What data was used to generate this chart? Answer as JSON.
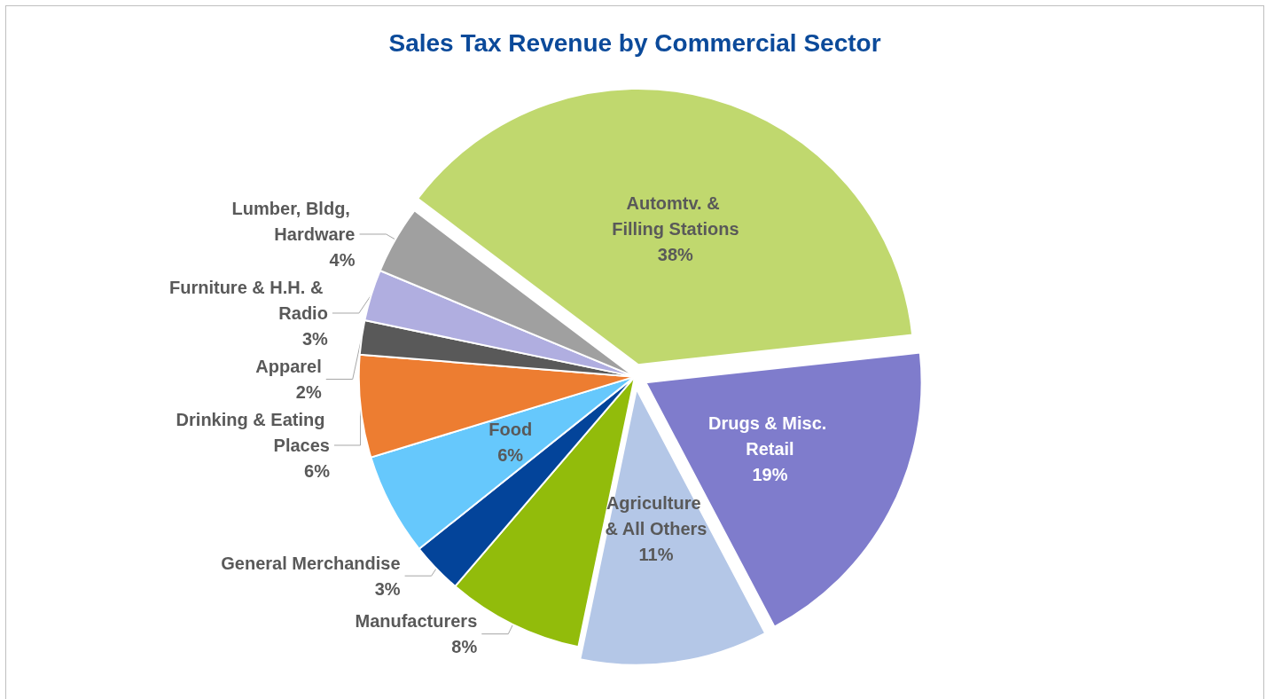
{
  "chart_data": {
    "type": "pie",
    "title": "Sales Tax Revenue by Commercial Sector",
    "categories": [
      "Automtv. & Filling Stations",
      "Drugs & Misc. Retail",
      "Agriculture & All Others",
      "Manufacturers",
      "General Merchandise",
      "Food",
      "Drinking & Eating Places",
      "Apparel",
      "Furniture & H.H. & Radio",
      "Lumber, Bldg, Hardware"
    ],
    "values": [
      38,
      19,
      11,
      8,
      3,
      6,
      6,
      2,
      3,
      4
    ],
    "colors": [
      "#c0d86e",
      "#7f7ccc",
      "#b4c7e7",
      "#92bc0b",
      "#03449a",
      "#66c8fc",
      "#ed7d31",
      "#595959",
      "#b0aee0",
      "#a0a0a0"
    ],
    "value_labels": [
      "38%",
      "19%",
      "11%",
      "8%",
      "3%",
      "6%",
      "6%",
      "2%",
      "3%",
      "4%"
    ],
    "legend": false
  }
}
